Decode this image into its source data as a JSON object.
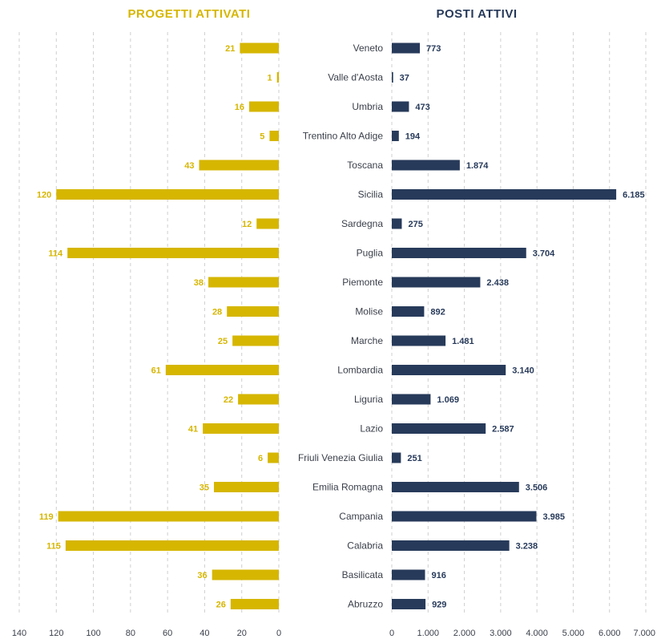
{
  "colors": {
    "left_bar": "#d6b600",
    "right_bar": "#273a5a",
    "left_title": "#d6b600",
    "right_title": "#273a5a",
    "grid": "#cfcfcf"
  },
  "chart_data": [
    {
      "type": "bar",
      "orientation": "horizontal",
      "direction": "right-to-left",
      "title": "PROGETTI ATTIVATI",
      "categories": [
        "Veneto",
        "Valle d'Aosta",
        "Umbria",
        "Trentino Alto Adige",
        "Toscana",
        "Sicilia",
        "Sardegna",
        "Puglia",
        "Piemonte",
        "Molise",
        "Marche",
        "Lombardia",
        "Liguria",
        "Lazio",
        "Friuli Venezia Giulia",
        "Emilia Romagna",
        "Campania",
        "Calabria",
        "Basilicata",
        "Abruzzo"
      ],
      "values": [
        21,
        1,
        16,
        5,
        43,
        120,
        12,
        114,
        38,
        28,
        25,
        61,
        22,
        41,
        6,
        35,
        119,
        115,
        36,
        26
      ],
      "value_labels": [
        "21",
        "1",
        "16",
        "5",
        "43",
        "120",
        "12",
        "114",
        "38",
        "28",
        "25",
        "61",
        "22",
        "41",
        "6",
        "35",
        "119",
        "115",
        "36",
        "26"
      ],
      "xlim": [
        0,
        140
      ],
      "ticks": [
        140,
        120,
        100,
        80,
        60,
        40,
        20,
        0
      ],
      "tick_labels": [
        "140",
        "120",
        "100",
        "80",
        "60",
        "40",
        "20",
        "0"
      ],
      "grid": true
    },
    {
      "type": "bar",
      "orientation": "horizontal",
      "title": "POSTI ATTIVI",
      "categories": [
        "Veneto",
        "Valle d'Aosta",
        "Umbria",
        "Trentino Alto Adige",
        "Toscana",
        "Sicilia",
        "Sardegna",
        "Puglia",
        "Piemonte",
        "Molise",
        "Marche",
        "Lombardia",
        "Liguria",
        "Lazio",
        "Friuli Venezia Giulia",
        "Emilia Romagna",
        "Campania",
        "Calabria",
        "Basilicata",
        "Abruzzo"
      ],
      "values": [
        773,
        37,
        473,
        194,
        1874,
        6185,
        275,
        3704,
        2438,
        892,
        1481,
        3140,
        1069,
        2587,
        251,
        3506,
        3985,
        3238,
        916,
        929
      ],
      "value_labels": [
        "773",
        "37",
        "473",
        "194",
        "1.874",
        "6.185",
        "275",
        "3.704",
        "2.438",
        "892",
        "1.481",
        "3.140",
        "1.069",
        "2.587",
        "251",
        "3.506",
        "3.985",
        "3.238",
        "916",
        "929"
      ],
      "xlim": [
        0,
        7000
      ],
      "ticks": [
        0,
        1000,
        2000,
        3000,
        4000,
        5000,
        6000,
        7000
      ],
      "tick_labels": [
        "0",
        "1.000",
        "2.000",
        "3.000",
        "4.000",
        "5.000",
        "6.000",
        "7.000"
      ],
      "grid": true
    }
  ]
}
